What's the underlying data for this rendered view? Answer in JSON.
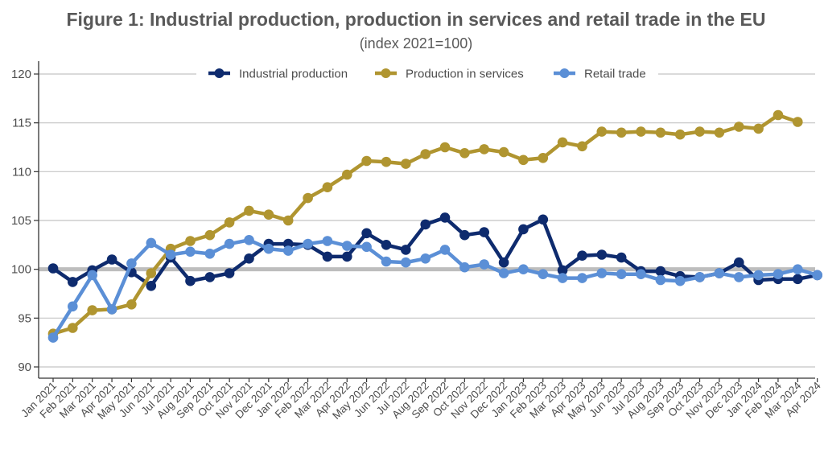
{
  "chart_data": {
    "type": "line",
    "title": "Figure 1: Industrial production, production in services and retail trade in the EU",
    "subtitle": "(index 2021=100)",
    "xlabel": "",
    "ylabel": "",
    "ylim": [
      89,
      121
    ],
    "yticks": [
      90,
      95,
      100,
      105,
      110,
      115,
      120
    ],
    "ytick_labels": [
      "90",
      "95",
      "100",
      "105",
      "110",
      "115",
      "120"
    ],
    "reference_line": 100,
    "grid": true,
    "legend_position": "top",
    "categories": [
      "Jan 2021",
      "Feb 2021",
      "Mar 2021",
      "Apr 2021",
      "May 2021",
      "Jun 2021",
      "Jul 2021",
      "Aug 2021",
      "Sep 2021",
      "Oct 2021",
      "Nov 2021",
      "Dec 2021",
      "Jan 2022",
      "Feb 2022",
      "Mar 2022",
      "Apr 2022",
      "May 2022",
      "Jun 2022",
      "Jul 2022",
      "Aug 2022",
      "Sep 2022",
      "Oct 2022",
      "Nov 2022",
      "Dec 2022",
      "Jan 2023",
      "Feb 2023",
      "Mar 2023",
      "Apr 2023",
      "May 2023",
      "Jun 2023",
      "Jul 2023",
      "Aug 2023",
      "Sep 2023",
      "Oct 2023",
      "Nov 2023",
      "Dec 2023",
      "Jan 2024",
      "Feb 2024",
      "Mar 2024",
      "Apr 2024"
    ],
    "series": [
      {
        "name": "Industrial production",
        "color": "#0e2b6e",
        "values": [
          100.1,
          98.7,
          99.9,
          101.0,
          99.7,
          98.3,
          101.2,
          98.8,
          99.2,
          99.6,
          101.1,
          102.6,
          102.6,
          102.5,
          101.3,
          101.3,
          103.7,
          102.5,
          102.0,
          104.6,
          105.3,
          103.5,
          103.8,
          100.7,
          104.1,
          105.1,
          99.9,
          101.4,
          101.5,
          101.2,
          99.8,
          99.8,
          99.3,
          99.2,
          99.6,
          100.7,
          98.9,
          99.0,
          99.0,
          99.4
        ]
      },
      {
        "name": "Production in services",
        "color": "#b09530",
        "values": [
          93.4,
          94.0,
          95.8,
          95.9,
          96.4,
          99.6,
          102.1,
          102.9,
          103.5,
          104.8,
          106.0,
          105.6,
          105.0,
          107.3,
          108.4,
          109.7,
          111.1,
          111.0,
          110.8,
          111.8,
          112.5,
          111.9,
          112.3,
          112.0,
          111.2,
          111.4,
          113.0,
          112.6,
          114.1,
          114.0,
          114.1,
          114.0,
          113.8,
          114.1,
          114.0,
          114.6,
          114.4,
          115.8,
          115.1,
          null
        ]
      },
      {
        "name": "Retail trade",
        "color": "#5b8fd6",
        "values": [
          93.0,
          96.2,
          99.4,
          95.9,
          100.6,
          102.7,
          101.5,
          101.8,
          101.6,
          102.6,
          103.0,
          102.1,
          101.9,
          102.6,
          102.9,
          102.4,
          102.3,
          100.8,
          100.7,
          101.1,
          102.0,
          100.2,
          100.5,
          99.6,
          100.0,
          99.5,
          99.1,
          99.1,
          99.6,
          99.5,
          99.5,
          98.9,
          98.8,
          99.2,
          99.6,
          99.2,
          99.4,
          99.5,
          100.0,
          99.4
        ]
      }
    ]
  }
}
